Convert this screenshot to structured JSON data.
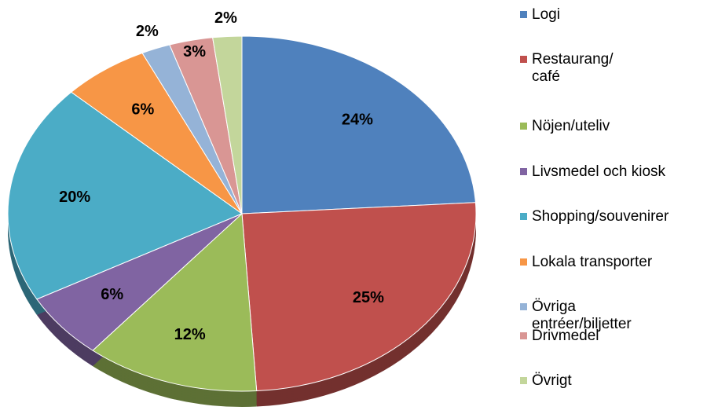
{
  "chart_data": {
    "type": "pie",
    "categories": [
      "Logi",
      "Restaurang/\ncafé",
      "Nöjen/uteliv",
      "Livsmedel och kiosk",
      "Shopping/souvenirer",
      "Lokala transporter",
      "Övriga\nentréer/biljetter",
      "Drivmedel",
      "Övrigt"
    ],
    "values": [
      24,
      25,
      12,
      6,
      20,
      6,
      2,
      3,
      2
    ],
    "value_labels": [
      "24%",
      "25%",
      "12%",
      "6%",
      "20%",
      "6%",
      "2%",
      "3%",
      "2%"
    ],
    "colors": [
      "#4f81bd",
      "#c0504d",
      "#9bbb59",
      "#8064a2",
      "#4bacc6",
      "#f79646",
      "#95b3d7",
      "#d99694",
      "#c3d69b"
    ],
    "legend": "right"
  }
}
